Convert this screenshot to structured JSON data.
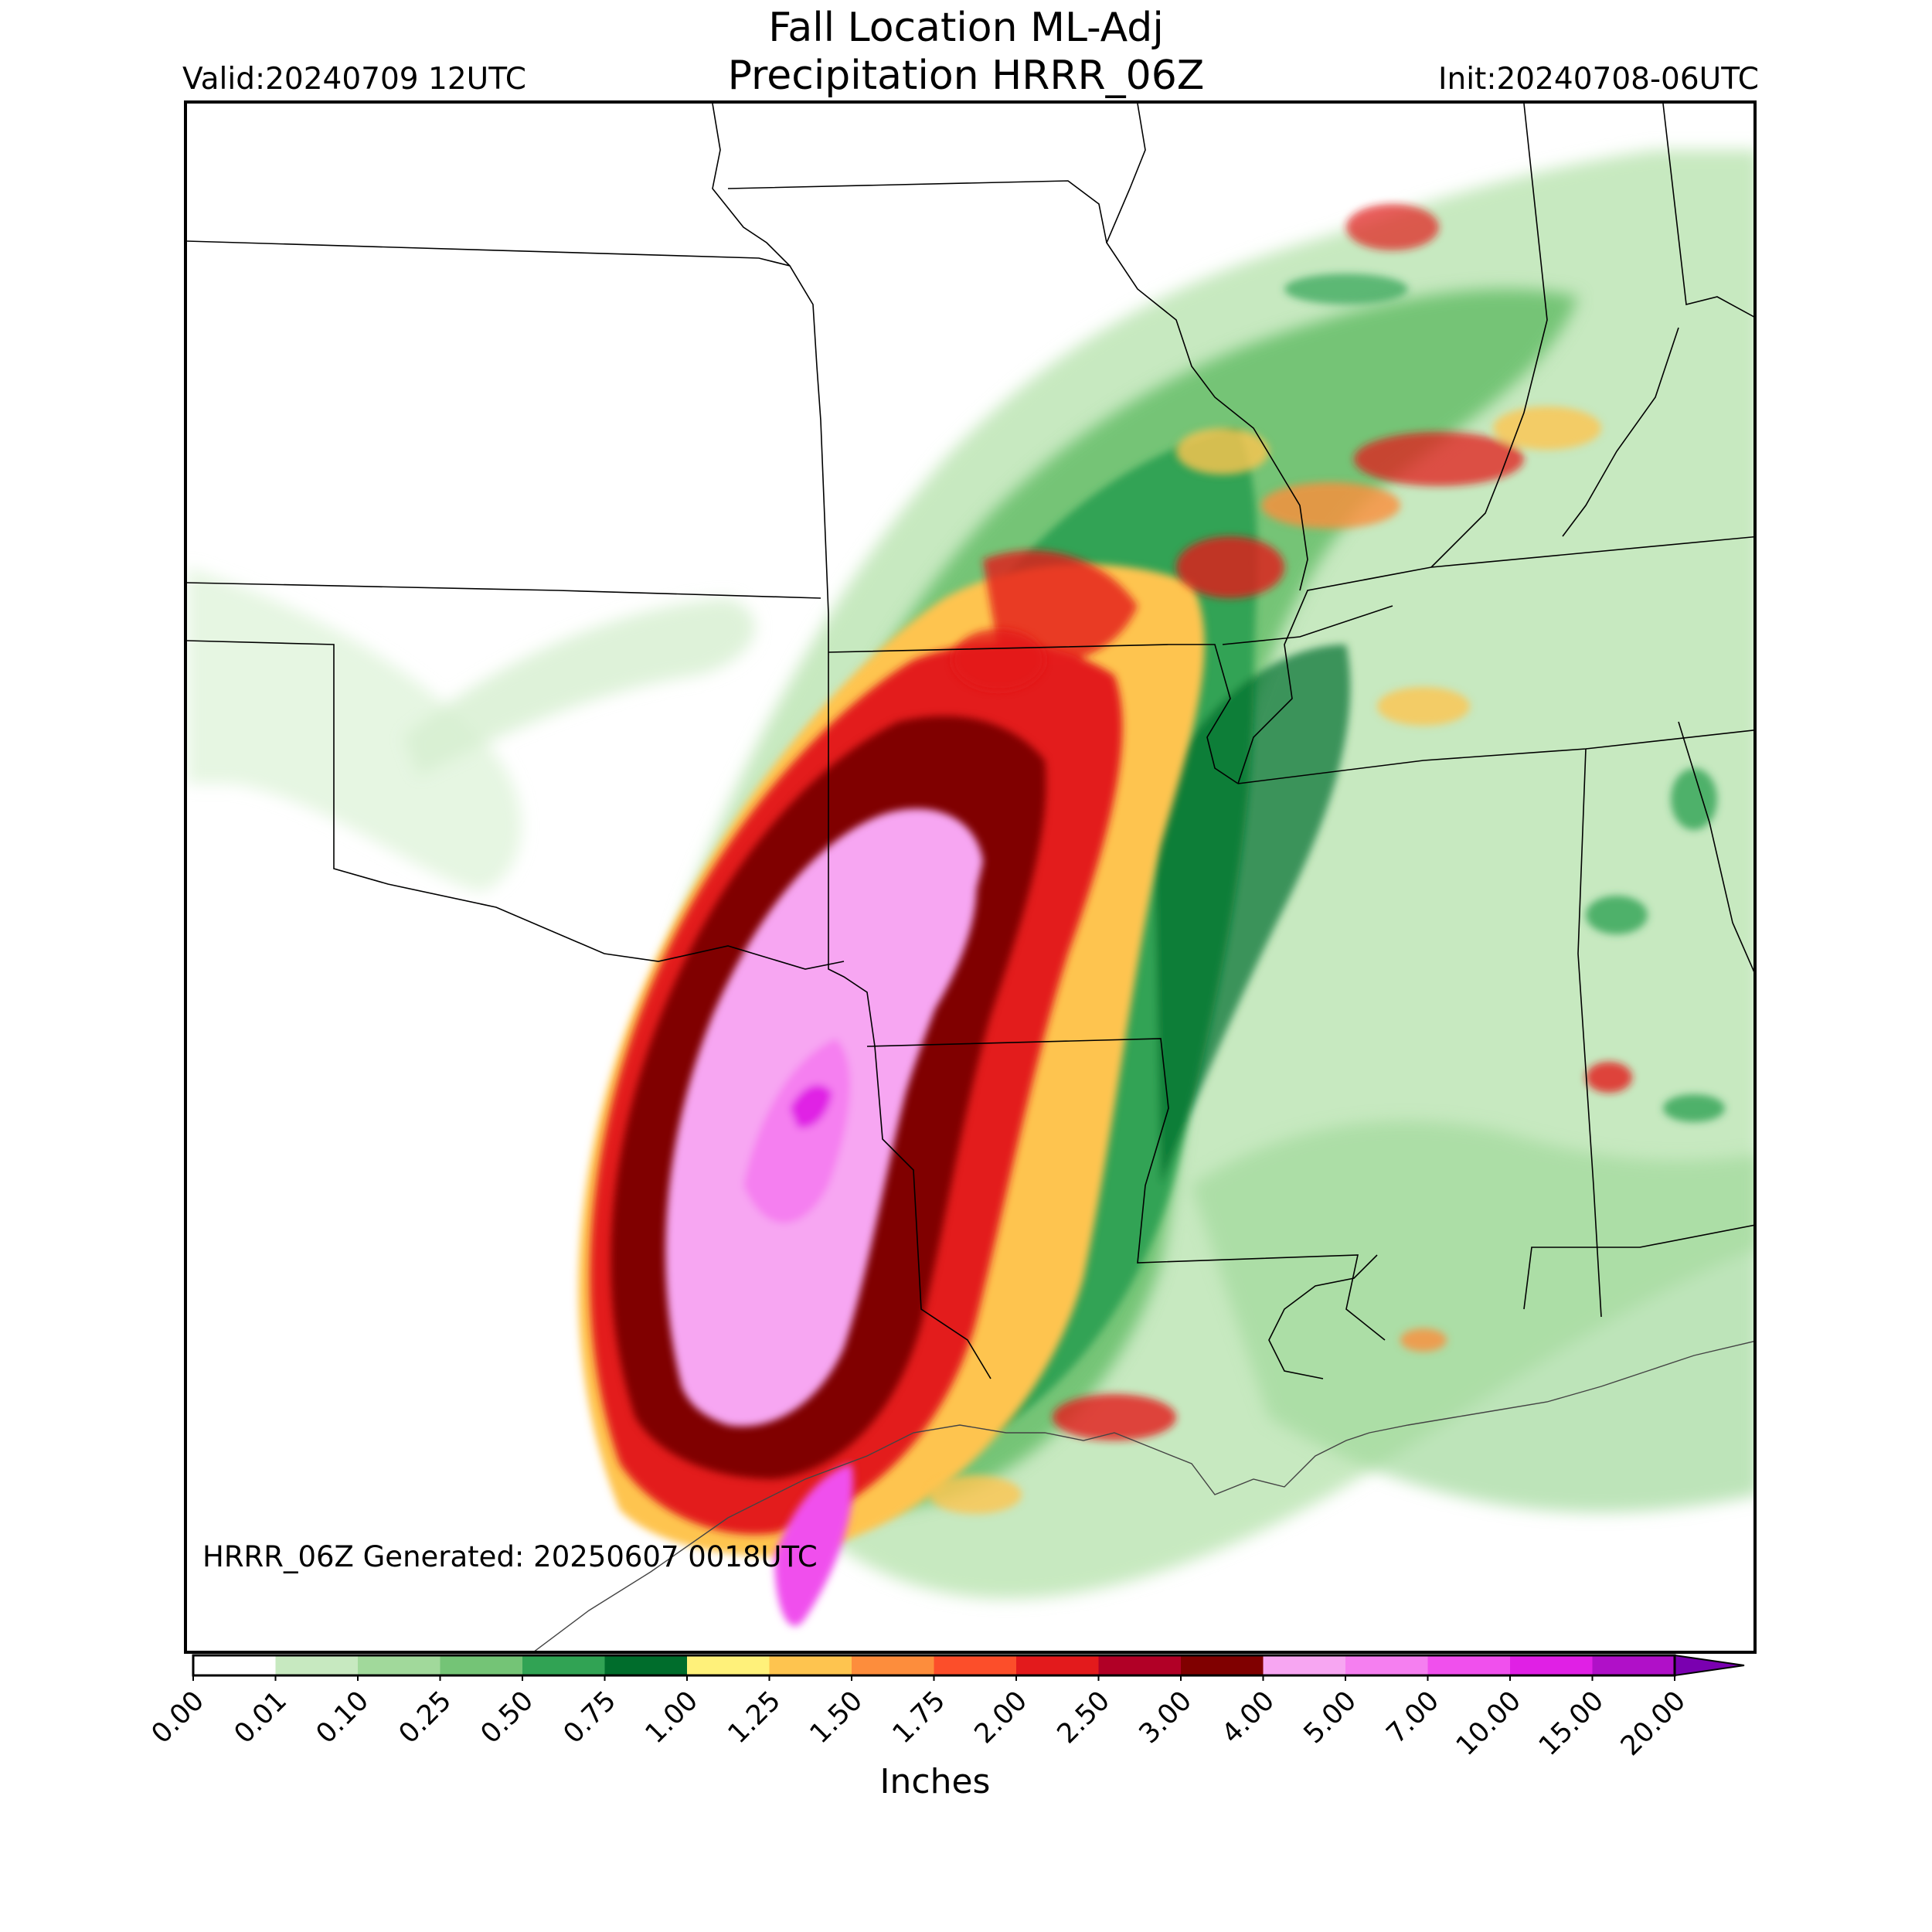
{
  "header": {
    "title_line1": "Fall Location ML-Adj",
    "title_line2": "Precipitation HRRR_06Z",
    "valid": "Valid:20240709 12UTC",
    "init": "Init:20240708-06UTC"
  },
  "map": {
    "generated_note": "HRRR_06Z Generated: 20250607 0018UTC"
  },
  "colorbar": {
    "label": "Inches",
    "ticks": [
      "0.00",
      "0.01",
      "0.10",
      "0.25",
      "0.50",
      "0.75",
      "1.00",
      "1.25",
      "1.50",
      "1.75",
      "2.00",
      "2.50",
      "3.00",
      "4.00",
      "5.00",
      "7.00",
      "10.00",
      "15.00",
      "20.00"
    ],
    "colors": [
      "#ffffff",
      "#c7e9c0",
      "#a1d99b",
      "#74c476",
      "#31a354",
      "#006d2c",
      "#fff17a",
      "#fec44f",
      "#fd8d3c",
      "#fc4e2a",
      "#e31a1c",
      "#b10026",
      "#800000",
      "#f7a6f2",
      "#f57ff0",
      "#f050ed",
      "#e020e5",
      "#b010c8"
    ],
    "extend_color": "#7a00b0"
  }
}
